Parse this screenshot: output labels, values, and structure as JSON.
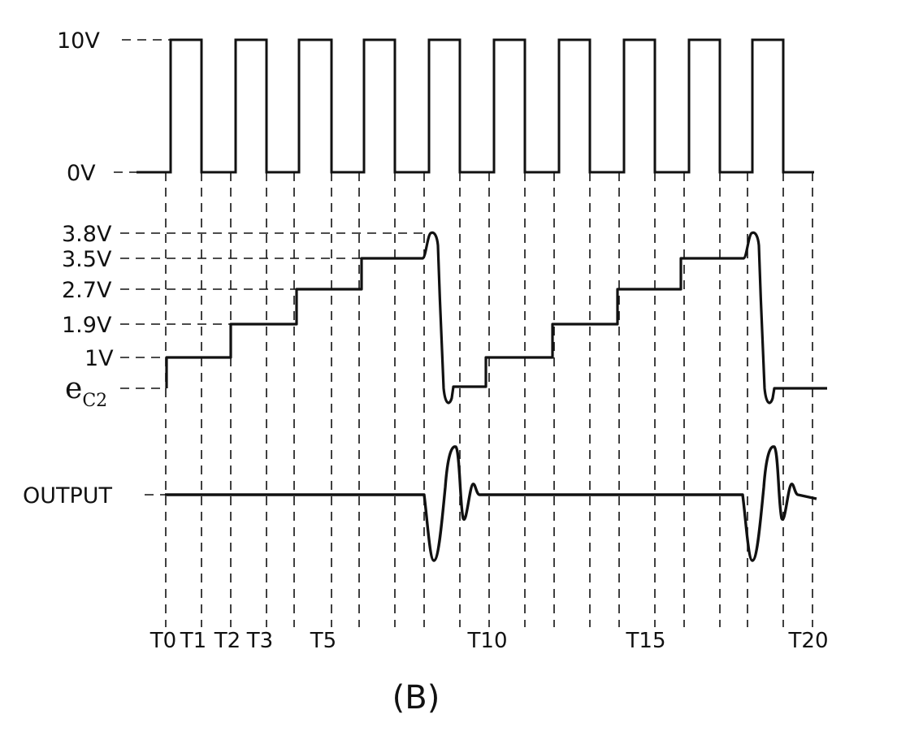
{
  "clock": {
    "high_label": "10V",
    "low_label": "0V",
    "high_volts": 10,
    "low_volts": 0
  },
  "capacitor": {
    "signal_name": "e",
    "signal_subscript": "C2",
    "levels": [
      {
        "label": "3.8V",
        "volts": 3.8
      },
      {
        "label": "3.5V",
        "volts": 3.5
      },
      {
        "label": "2.7V",
        "volts": 2.7
      },
      {
        "label": "1.9V",
        "volts": 1.9
      },
      {
        "label": "1V",
        "volts": 1.0
      }
    ]
  },
  "output": {
    "label": "OUTPUT"
  },
  "time_labels": [
    "T0",
    "T1",
    "T2",
    "T3",
    "T5",
    "T10",
    "T15",
    "T20"
  ],
  "caption": "(B)"
}
